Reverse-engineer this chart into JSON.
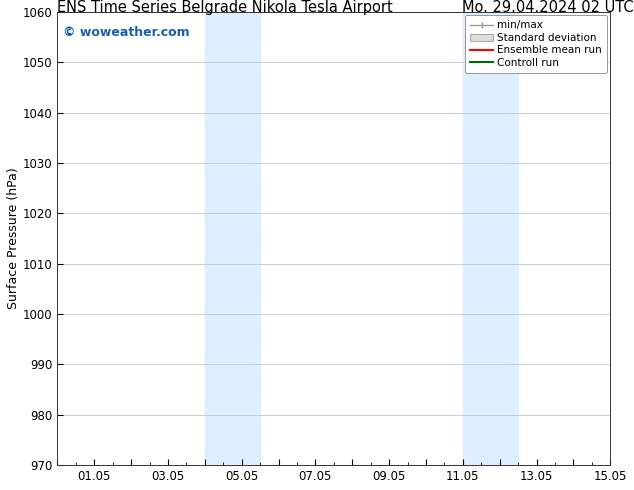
{
  "title_left": "ENS Time Series Belgrade Nikola Tesla Airport",
  "title_right": "Mo. 29.04.2024 02 UTC",
  "ylabel": "Surface Pressure (hPa)",
  "xlim": [
    0,
    15
  ],
  "ylim": [
    970,
    1060
  ],
  "yticks": [
    970,
    980,
    990,
    1000,
    1010,
    1020,
    1030,
    1040,
    1050,
    1060
  ],
  "xtick_labels": [
    "",
    "01.05",
    "",
    "03.05",
    "",
    "05.05",
    "",
    "07.05",
    "",
    "09.05",
    "",
    "11.05",
    "",
    "13.05",
    "",
    "15.05"
  ],
  "xtick_positions": [
    0,
    1,
    2,
    3,
    4,
    5,
    6,
    7,
    8,
    9,
    10,
    11,
    12,
    13,
    14,
    15
  ],
  "shaded_bands": [
    {
      "x_start": 4.0,
      "x_end": 5.5
    },
    {
      "x_start": 11.0,
      "x_end": 12.5
    }
  ],
  "shade_color": "#ddeeff",
  "watermark_text": "© woweather.com",
  "watermark_color": "#1a5faa",
  "legend_entries": [
    {
      "label": "min/max",
      "color": "#aaaaaa",
      "type": "errorbar"
    },
    {
      "label": "Standard deviation",
      "color": "#cccccc",
      "type": "patch"
    },
    {
      "label": "Ensemble mean run",
      "color": "#ff0000",
      "type": "line"
    },
    {
      "label": "Controll run",
      "color": "#008000",
      "type": "line"
    }
  ],
  "bg_color": "#ffffff",
  "plot_bg_color": "#f5f5f5",
  "grid_color": "#bbbbbb",
  "title_fontsize": 10.5,
  "axis_label_fontsize": 9,
  "tick_fontsize": 8.5
}
